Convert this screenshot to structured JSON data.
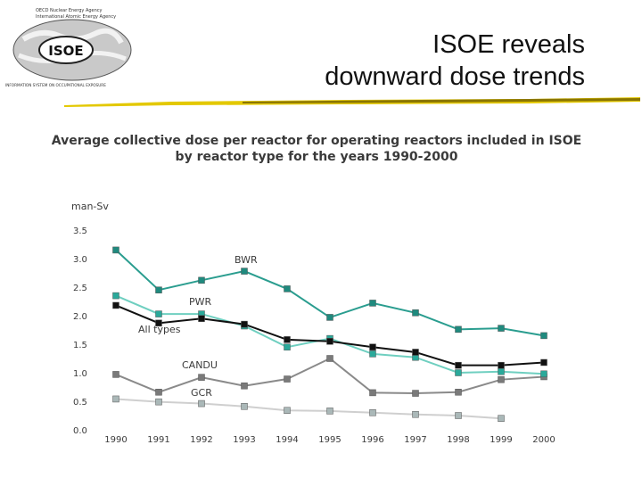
{
  "slide": {
    "title_line1": "ISOE reveals",
    "title_line2": "downward dose trends"
  },
  "logo": {
    "top_line1": "OECD Nuclear Energy Agency",
    "top_line2": "International Atomic Energy Agency",
    "emblem_text": "ISOE",
    "bottom_text": "INFORMATION SYSTEM ON OCCUPATIONAL EXPOSURE"
  },
  "chart_data": {
    "type": "line",
    "title_line1": "Average collective dose per reactor for operating reactors included in ISOE",
    "title_line2": "by reactor type for the years 1990-2000",
    "ylabel": "man-Sv",
    "xlabel": "",
    "x": [
      "1990",
      "1991",
      "1992",
      "1993",
      "1994",
      "1995",
      "1996",
      "1997",
      "1998",
      "1999",
      "2000"
    ],
    "yticks": [
      "0.0",
      "0.5",
      "1.0",
      "1.5",
      "2.0",
      "2.5",
      "3.0",
      "3.5"
    ],
    "ylim": [
      0,
      3.5
    ],
    "grid": false,
    "series": [
      {
        "name": "BWR",
        "color": "#2a9d8f",
        "marker": "#1f8a7e",
        "values": [
          3.15,
          2.45,
          2.62,
          2.78,
          2.47,
          1.97,
          2.22,
          2.05,
          1.76,
          1.78,
          1.65
        ]
      },
      {
        "name": "PWR",
        "color": "#6fcfc0",
        "marker": "#2aa99a",
        "values": [
          2.35,
          2.03,
          2.03,
          1.82,
          1.45,
          1.6,
          1.33,
          1.27,
          1.0,
          1.02,
          0.98
        ]
      },
      {
        "name": "All types",
        "color": "#111111",
        "marker": "#111111",
        "values": [
          2.18,
          1.87,
          1.95,
          1.85,
          1.58,
          1.55,
          1.45,
          1.36,
          1.13,
          1.13,
          1.18
        ]
      },
      {
        "name": "CANDU",
        "color": "#8a8a8a",
        "marker": "#7a7a7a",
        "values": [
          0.97,
          0.66,
          0.92,
          0.77,
          0.89,
          1.25,
          0.65,
          0.64,
          0.66,
          0.88,
          0.93
        ]
      },
      {
        "name": "GCR",
        "color": "#cfcfcf",
        "marker": "#aab8b8",
        "values": [
          0.54,
          0.49,
          0.46,
          0.41,
          0.34,
          0.33,
          0.3,
          0.27,
          0.25,
          0.2,
          null
        ]
      }
    ]
  }
}
